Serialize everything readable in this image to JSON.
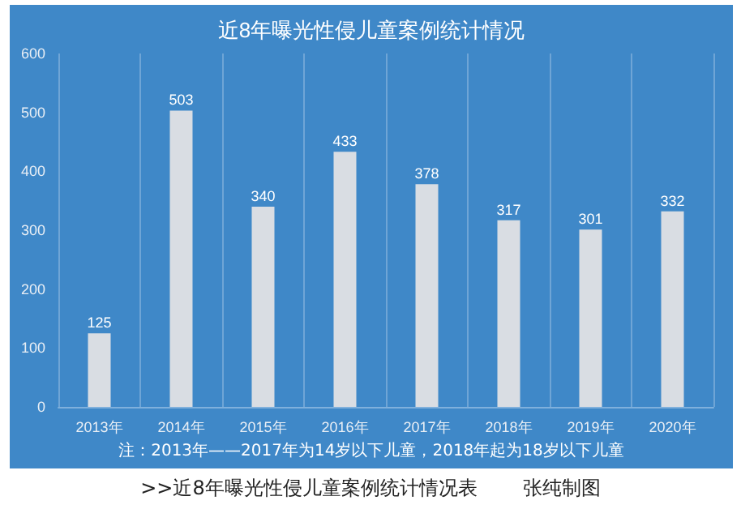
{
  "chart_data": {
    "type": "bar",
    "title": "近8年曝光性侵儿童案例统计情况",
    "categories": [
      "2013年",
      "2014年",
      "2015年",
      "2016年",
      "2017年",
      "2018年",
      "2019年",
      "2020年"
    ],
    "values": [
      125,
      503,
      340,
      433,
      378,
      317,
      301,
      332
    ],
    "color": "#d9dde3",
    "ylim": [
      0,
      600
    ],
    "yticks": [
      0,
      100,
      200,
      300,
      400,
      500,
      600
    ],
    "grid": "x",
    "data_labels": true,
    "annotations": [
      "注：2013年——2017年为14岁以下儿童，2018年起为18岁以下儿童",
      ">>近8年曝光性侵儿童案例统计情况表",
      "张纯制图"
    ]
  }
}
